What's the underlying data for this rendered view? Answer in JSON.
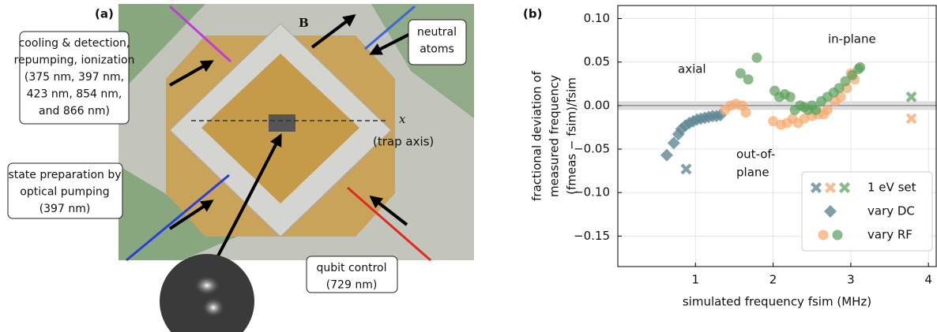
{
  "panel_a": {
    "label": "(a)",
    "field_label": "B",
    "axis_label": "x",
    "axis_note": "(trap axis)",
    "callouts": [
      {
        "lines": [
          "cooling & detection,",
          "repumping, ionization",
          "(375 nm, 397 nm,",
          "423 nm, 854 nm,",
          "and 866 nm)"
        ]
      },
      {
        "lines": [
          "neutral",
          "atoms"
        ]
      },
      {
        "lines": [
          "state preparation by",
          "optical pumping",
          "(397 nm)"
        ]
      },
      {
        "lines": [
          "qubit control",
          "(729 nm)"
        ]
      }
    ]
  },
  "chart_data": {
    "type": "scatter",
    "panel_label": "(b)",
    "xlabel": "simulated frequency fsim (MHz)",
    "ylabel": [
      "fractional deviation of",
      "measured frequency",
      "(fmeas − fsim)/fsim"
    ],
    "xlim": [
      0,
      4.1
    ],
    "ylim": [
      -0.185,
      0.115
    ],
    "xticks": [
      1,
      2,
      3,
      4
    ],
    "yticks": [
      {
        "value": 0.1,
        "label": "0.10"
      },
      0.05,
      {
        "value": 0,
        "label": "0.00"
      },
      {
        "value": -0.05,
        "label": "−0.05"
      },
      {
        "value": -0.1,
        "label": "−0.10"
      },
      {
        "value": -0.15,
        "label": "−0.15"
      }
    ],
    "grid": true,
    "annotations": [
      {
        "lines": [
          "axial"
        ],
        "color": "#2f5f6e"
      },
      {
        "lines": [
          "in-plane"
        ],
        "color": "#3c8c3c"
      },
      {
        "lines": [
          "out-of-",
          "plane"
        ],
        "color": "#f4944a"
      }
    ],
    "legend_position": "lower right",
    "legend": [
      {
        "label": "1 eV set",
        "marker": "x"
      },
      {
        "label": "vary DC",
        "marker": "diamond"
      },
      {
        "label": "vary RF",
        "marker": "circle"
      }
    ],
    "series": [
      {
        "marker": "diamond",
        "color": "#5f8795",
        "x": [
          0.63,
          0.72,
          0.78,
          0.82,
          0.87,
          0.92,
          0.97,
          1.02,
          1.07,
          1.12,
          1.17,
          1.22,
          1.27,
          1.32
        ],
        "values": [
          -0.057,
          -0.043,
          -0.033,
          -0.027,
          -0.023,
          -0.02,
          -0.018,
          -0.016,
          -0.015,
          -0.014,
          -0.013,
          -0.012,
          -0.012,
          -0.011
        ]
      },
      {
        "marker": "circle",
        "color": "#f7a869",
        "x": [
          1.38,
          1.45,
          1.52,
          1.6,
          1.65,
          2.0,
          2.1,
          2.18,
          2.25,
          2.32,
          2.4,
          2.5,
          2.58,
          2.65,
          2.7,
          2.8,
          2.87,
          2.95,
          3.0,
          3.05
        ],
        "values": [
          -0.005,
          0.0,
          0.002,
          0.0,
          -0.008,
          -0.018,
          -0.022,
          -0.02,
          -0.015,
          -0.02,
          -0.015,
          -0.012,
          -0.01,
          -0.01,
          -0.005,
          0.005,
          0.01,
          0.02,
          0.037,
          0.03
        ]
      },
      {
        "marker": "circle",
        "color": "#5a9e5a",
        "x": [
          1.58,
          1.68,
          1.79,
          2.02,
          2.08,
          2.15,
          2.22,
          2.28,
          2.35,
          2.4,
          2.45,
          2.5,
          2.55,
          2.62,
          2.7,
          2.78,
          2.85,
          2.93,
          3.02,
          3.1,
          3.12
        ],
        "values": [
          0.037,
          0.03,
          0.055,
          0.017,
          0.01,
          0.013,
          0.01,
          -0.005,
          0.0,
          -0.002,
          -0.005,
          0.0,
          -0.005,
          0.005,
          0.01,
          0.015,
          0.02,
          0.028,
          0.035,
          0.042,
          0.044
        ]
      },
      {
        "marker": "x",
        "color": "#6f909c",
        "x": [
          0.88
        ],
        "values": [
          -0.073
        ]
      },
      {
        "marker": "x",
        "color": "#f7b081",
        "x": [
          3.78
        ],
        "values": [
          -0.015
        ]
      },
      {
        "marker": "x",
        "color": "#74ad74",
        "x": [
          3.78
        ],
        "values": [
          0.01
        ]
      }
    ]
  }
}
